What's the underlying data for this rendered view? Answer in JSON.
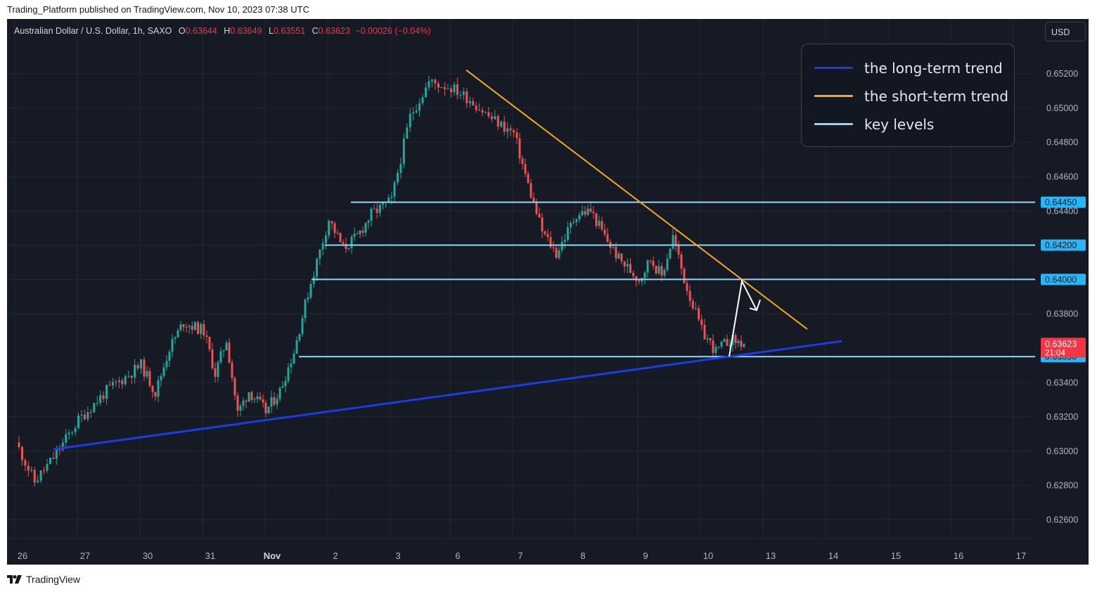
{
  "header": {
    "published": "Trading_Platform published on TradingView.com, Nov 10, 2023 07:38 UTC"
  },
  "symbol": {
    "name": "Australian Dollar / U.S. Dollar, 1h, SAXO",
    "open_label": "O",
    "open": "0.63644",
    "high_label": "H",
    "high": "0.63649",
    "low_label": "L",
    "low": "0.63551",
    "close_label": "C",
    "close": "0.63623",
    "change": "−0.00026 (−0.04%)"
  },
  "currency_button": "USD",
  "legend": {
    "items": [
      {
        "label": "the long-term trend",
        "color": "#1c3ce0"
      },
      {
        "label": "the short-term trend",
        "color": "#f5a623"
      },
      {
        "label": "key levels",
        "color": "#8fd7f7"
      }
    ]
  },
  "footer": {
    "brand": "TradingView"
  },
  "colors": {
    "background": "#161a25",
    "up": "#26a69a",
    "down": "#ef5350",
    "grid": "#222632",
    "axis_text": "#b2b5be",
    "level_badge": "#29b6f6",
    "price_badge": "#f23645",
    "arrow": "#ffffff"
  },
  "chart_data": {
    "type": "candlestick",
    "symbol": "Australian Dollar / U.S. Dollar",
    "interval": "1h",
    "exchange": "SAXO",
    "x_tick_labels": [
      "26",
      "27",
      "30",
      "31",
      "Nov",
      "2",
      "3",
      "6",
      "7",
      "8",
      "9",
      "10",
      "13",
      "14",
      "15",
      "16",
      "17"
    ],
    "y_tick_labels": [
      "0.62600",
      "0.62800",
      "0.63000",
      "0.63200",
      "0.63400",
      "0.63800",
      "0.64000",
      "0.64200",
      "0.64400",
      "0.64600",
      "0.64800",
      "0.65000",
      "0.65200"
    ],
    "y_range": [
      0.6248,
      0.654
    ],
    "price_path": [
      {
        "day": "26",
        "price": 0.6305
      },
      {
        "day": "26",
        "price": 0.6282
      },
      {
        "day": "26",
        "price": 0.6296
      },
      {
        "day": "27",
        "price": 0.6318
      },
      {
        "day": "27",
        "price": 0.6335
      },
      {
        "day": "30",
        "price": 0.635
      },
      {
        "day": "30",
        "price": 0.6334
      },
      {
        "day": "30",
        "price": 0.636
      },
      {
        "day": "30",
        "price": 0.6375
      },
      {
        "day": "31",
        "price": 0.637
      },
      {
        "day": "31",
        "price": 0.6345
      },
      {
        "day": "31",
        "price": 0.6365
      },
      {
        "day": "31",
        "price": 0.6322
      },
      {
        "day": "31",
        "price": 0.6335
      },
      {
        "day": "Nov",
        "price": 0.6323
      },
      {
        "day": "Nov",
        "price": 0.6335
      },
      {
        "day": "Nov",
        "price": 0.6358
      },
      {
        "day": "Nov",
        "price": 0.6392
      },
      {
        "day": "2",
        "price": 0.6435
      },
      {
        "day": "2",
        "price": 0.6418
      },
      {
        "day": "2",
        "price": 0.6425
      },
      {
        "day": "2",
        "price": 0.6438
      },
      {
        "day": "3",
        "price": 0.6446
      },
      {
        "day": "3",
        "price": 0.6495
      },
      {
        "day": "3",
        "price": 0.6515
      },
      {
        "day": "6",
        "price": 0.6512
      },
      {
        "day": "6",
        "price": 0.6505
      },
      {
        "day": "6",
        "price": 0.6495
      },
      {
        "day": "7",
        "price": 0.6485
      },
      {
        "day": "7",
        "price": 0.6455
      },
      {
        "day": "7",
        "price": 0.6428
      },
      {
        "day": "7",
        "price": 0.6415
      },
      {
        "day": "8",
        "price": 0.6438
      },
      {
        "day": "8",
        "price": 0.644
      },
      {
        "day": "8",
        "price": 0.6425
      },
      {
        "day": "8",
        "price": 0.6412
      },
      {
        "day": "9",
        "price": 0.64
      },
      {
        "day": "9",
        "price": 0.6412
      },
      {
        "day": "9",
        "price": 0.6402
      },
      {
        "day": "9",
        "price": 0.6425
      },
      {
        "day": "9",
        "price": 0.64
      },
      {
        "day": "10",
        "price": 0.637
      },
      {
        "day": "10",
        "price": 0.6358
      },
      {
        "day": "10",
        "price": 0.6365
      },
      {
        "day": "10",
        "price": 0.63623
      }
    ],
    "key_levels": [
      {
        "value": 0.6445,
        "label": "0.64450"
      },
      {
        "value": 0.642,
        "label": "0.64200"
      },
      {
        "value": 0.64,
        "label": "0.64000"
      },
      {
        "value": 0.6355,
        "label": "0.63550"
      }
    ],
    "current_price": {
      "value": 0.63623,
      "label": "0.63623",
      "countdown": "21:04"
    },
    "long_term_trend": {
      "from": {
        "day": "26",
        "price": 0.6301
      },
      "to": {
        "day": "14",
        "price": 0.6364
      }
    },
    "short_term_trend": {
      "from": {
        "day": "6",
        "price": 0.6522
      },
      "to": {
        "day": "13",
        "price": 0.6371
      }
    },
    "projection_arrow": [
      {
        "day": "10",
        "price": 0.6355
      },
      {
        "day": "10",
        "price": 0.6399
      },
      {
        "day": "13",
        "price": 0.6382
      }
    ],
    "grid": true,
    "legend_position": "top-right"
  }
}
